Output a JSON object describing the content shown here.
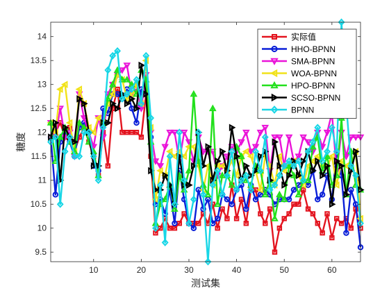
{
  "chart_data": {
    "type": "line",
    "xlabel": "测试集",
    "ylabel": "糖度",
    "xlim": [
      1,
      66
    ],
    "ylim": [
      9.3,
      14.3
    ],
    "xticks": [
      10,
      20,
      30,
      40,
      50,
      60
    ],
    "yticks": [
      9.5,
      10,
      10.5,
      11,
      11.5,
      12,
      12.5,
      13,
      13.5,
      14
    ],
    "grid": false,
    "legend_position": "top-right",
    "x": [
      1,
      2,
      3,
      4,
      5,
      6,
      7,
      8,
      9,
      10,
      11,
      12,
      13,
      14,
      15,
      16,
      17,
      18,
      19,
      20,
      21,
      22,
      23,
      24,
      25,
      26,
      27,
      28,
      29,
      30,
      31,
      32,
      33,
      34,
      35,
      36,
      37,
      38,
      39,
      40,
      41,
      42,
      43,
      44,
      45,
      46,
      47,
      48,
      49,
      50,
      51,
      52,
      53,
      54,
      55,
      56,
      57,
      58,
      59,
      60,
      61,
      62,
      63,
      64,
      65,
      66
    ],
    "series": [
      {
        "name": "实际值",
        "color": "#e3131e",
        "marker": "square",
        "values": [
          11.9,
          12.0,
          12.2,
          11.9,
          12.1,
          11.6,
          11.9,
          12.1,
          11.8,
          11.5,
          11.1,
          12.0,
          11.3,
          12.5,
          12.9,
          12.0,
          12.0,
          12.0,
          12.0,
          11.9,
          12.8,
          11.5,
          9.9,
          10.0,
          10.2,
          10.0,
          10.0,
          10.1,
          10.3,
          10.1,
          10.1,
          10.1,
          10.3,
          10.1,
          10.5,
          10.0,
          10.4,
          10.2,
          10.9,
          10.2,
          10.6,
          10.1,
          10.8,
          10.8,
          10.3,
          10.1,
          10.4,
          9.5,
          10.0,
          10.2,
          10.3,
          10.5,
          10.5,
          10.8,
          10.4,
          10.3,
          10.1,
          9.9,
          10.3,
          9.8,
          10.2,
          10.1,
          10.2,
          10.0,
          10.4,
          10.0
        ]
      },
      {
        "name": "HHO-BPNN",
        "color": "#0a1fd8",
        "marker": "circle",
        "values": [
          11.9,
          10.7,
          11.8,
          12.0,
          11.8,
          11.5,
          12.1,
          12.2,
          12.0,
          11.3,
          11.2,
          12.5,
          12.4,
          12.8,
          12.8,
          12.7,
          12.9,
          12.5,
          12.2,
          12.9,
          12.8,
          11.9,
          10.5,
          10.6,
          10.3,
          10.8,
          10.1,
          11.2,
          10.6,
          10.1,
          10.0,
          10.8,
          10.4,
          10.6,
          10.1,
          10.2,
          10.7,
          10.6,
          10.5,
          10.8,
          10.9,
          10.4,
          10.9,
          10.6,
          10.7,
          10.8,
          10.7,
          10.5,
          10.6,
          10.6,
          10.6,
          10.8,
          10.9,
          11.0,
          10.9,
          11.2,
          10.6,
          10.7,
          11.1,
          10.6,
          11.6,
          11.1,
          9.9,
          10.8,
          10.5,
          9.6
        ]
      },
      {
        "name": "SMA-BPNN",
        "color": "#ea13d8",
        "marker": "triangle-down",
        "values": [
          12.2,
          11.9,
          12.5,
          11.9,
          12.0,
          11.5,
          12.8,
          12.3,
          12.0,
          11.7,
          12.3,
          11.9,
          12.8,
          13.0,
          13.2,
          13.3,
          13.4,
          12.8,
          12.9,
          12.5,
          13.2,
          12.0,
          11.4,
          11.3,
          11.7,
          12.0,
          12.0,
          11.4,
          12.0,
          11.8,
          11.4,
          11.9,
          11.6,
          11.6,
          11.6,
          11.1,
          11.3,
          11.5,
          11.7,
          11.6,
          11.8,
          12.0,
          11.6,
          11.7,
          12.0,
          12.1,
          11.2,
          11.9,
          11.9,
          11.3,
          11.9,
          11.4,
          11.5,
          11.9,
          11.8,
          11.6,
          12.0,
          11.7,
          12.0,
          12.4,
          11.2,
          12.0,
          11.5,
          11.9,
          11.9,
          11.9
        ]
      },
      {
        "name": "WOA-BPNN",
        "color": "#f1e21a",
        "marker": "triangle-left",
        "values": [
          12.2,
          12.0,
          12.9,
          13.0,
          12.2,
          11.6,
          12.9,
          12.6,
          12.1,
          12.0,
          12.3,
          12.2,
          12.6,
          12.8,
          13.2,
          13.1,
          12.7,
          12.8,
          13.0,
          12.6,
          13.5,
          12.1,
          10.6,
          11.2,
          11.1,
          11.6,
          11.5,
          11.6,
          11.5,
          11.7,
          11.7,
          11.3,
          10.8,
          11.3,
          10.9,
          11.3,
          11.3,
          11.2,
          11.4,
          11.1,
          11.5,
          11.6,
          11.5,
          11.2,
          10.8,
          11.5,
          11.3,
          10.9,
          11.5,
          11.2,
          11.3,
          11.4,
          11.1,
          10.9,
          11.3,
          11.4,
          11.5,
          11.3,
          11.3,
          11.5,
          10.9,
          11.4,
          11.3,
          11.3,
          11.6,
          10.2
        ]
      },
      {
        "name": "HPO-BPNN",
        "color": "#22e01c",
        "marker": "triangle-up",
        "values": [
          12.2,
          11.4,
          11.9,
          12.1,
          11.8,
          11.6,
          12.2,
          12.1,
          11.8,
          11.6,
          11.1,
          12.2,
          12.7,
          13.0,
          13.3,
          13.1,
          13.1,
          13.0,
          12.8,
          13.3,
          13.1,
          11.8,
          10.1,
          10.5,
          10.6,
          10.9,
          10.4,
          11.1,
          10.8,
          11.2,
          12.8,
          11.4,
          10.9,
          10.7,
          12.5,
          10.5,
          11.1,
          11.1,
          10.9,
          11.7,
          11.5,
          11.0,
          10.9,
          11.3,
          11.2,
          10.7,
          11.0,
          10.2,
          10.7,
          10.6,
          11.3,
          11.1,
          10.7,
          11.0,
          11.0,
          11.7,
          11.9,
          11.2,
          11.5,
          10.9,
          11.1,
          12.3,
          10.7,
          11.6,
          10.9,
          10.8
        ]
      },
      {
        "name": "SCSO-BPNN",
        "color": "#000000",
        "marker": "triangle-right",
        "values": [
          11.9,
          12.2,
          11.0,
          12.1,
          11.9,
          11.8,
          12.7,
          12.6,
          12.0,
          11.3,
          11.3,
          12.2,
          12.2,
          12.6,
          12.5,
          12.8,
          12.6,
          12.7,
          12.5,
          13.4,
          12.8,
          11.2,
          10.8,
          10.8,
          11.1,
          10.9,
          10.5,
          11.5,
          10.9,
          10.9,
          11.3,
          12.0,
          11.3,
          11.7,
          11.0,
          11.4,
          11.6,
          11.2,
          12.1,
          11.5,
          11.0,
          11.3,
          11.1,
          11.2,
          11.5,
          11.6,
          11.0,
          11.8,
          11.3,
          10.9,
          11.1,
          11.4,
          11.1,
          11.4,
          11.6,
          11.2,
          11.4,
          11.1,
          11.3,
          10.5,
          11.4,
          11.3,
          10.7,
          11.2,
          11.6,
          10.8
        ]
      },
      {
        "name": "BPNN",
        "color": "#18d6e6",
        "marker": "diamond",
        "values": [
          11.8,
          11.9,
          10.5,
          11.6,
          11.9,
          11.5,
          11.5,
          12.0,
          12.0,
          11.5,
          11.0,
          12.1,
          13.3,
          13.6,
          13.7,
          12.7,
          12.8,
          12.9,
          13.1,
          12.6,
          13.6,
          12.3,
          10.0,
          10.9,
          9.7,
          11.5,
          10.5,
          12.0,
          11.0,
          10.1,
          10.6,
          12.0,
          10.7,
          9.3,
          10.9,
          11.2,
          10.7,
          11.1,
          11.6,
          10.8,
          11.0,
          11.1,
          10.8,
          11.6,
          11.2,
          11.9,
          10.8,
          10.9,
          11.1,
          11.3,
          11.4,
          11.3,
          11.4,
          11.0,
          11.6,
          11.8,
          12.1,
          11.4,
          11.6,
          12.1,
          11.6,
          14.3,
          12.6,
          11.3,
          11.1,
          10.1
        ]
      }
    ]
  }
}
